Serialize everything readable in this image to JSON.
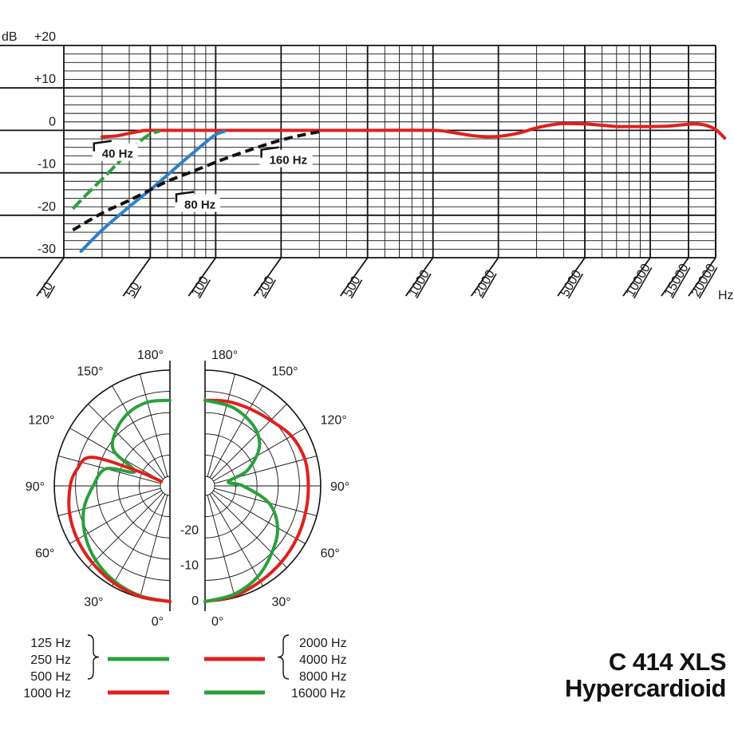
{
  "model": "C 414 XLS",
  "pattern": "Hypercardioid",
  "colors": {
    "red": "#e0201c",
    "green": "#29a03c",
    "blue": "#2f7fc8",
    "black": "#111111"
  },
  "chart_data": [
    {
      "type": "line",
      "x_scale": "log",
      "xlim": [
        20,
        20000
      ],
      "ylim": [
        -30,
        20
      ],
      "ylabel": "dB",
      "xlabel": "Hz",
      "grid": true,
      "y_ticks": [
        {
          "value": 20,
          "label": "+20"
        },
        {
          "value": 10,
          "label": "+10"
        },
        {
          "value": 0,
          "label": "0"
        },
        {
          "value": -10,
          "label": "-10"
        },
        {
          "value": -20,
          "label": "-20"
        },
        {
          "value": -30,
          "label": "-30"
        }
      ],
      "x_ticks": [
        {
          "value": 20,
          "label": "20"
        },
        {
          "value": 50,
          "label": "50"
        },
        {
          "value": 100,
          "label": "100"
        },
        {
          "value": 200,
          "label": "200"
        },
        {
          "value": 500,
          "label": "500"
        },
        {
          "value": 1000,
          "label": "1000"
        },
        {
          "value": 2000,
          "label": "2000"
        },
        {
          "value": 5000,
          "label": "5000"
        },
        {
          "value": 10000,
          "label": "10000"
        },
        {
          "value": 15000,
          "label": "15000"
        },
        {
          "value": 20000,
          "label": "20000"
        }
      ],
      "series": [
        {
          "color": "#e0201c",
          "style": "solid",
          "points": [
            [
              30,
              -1.5
            ],
            [
              35,
              -1.3
            ],
            [
              40,
              -0.7
            ],
            [
              45,
              -0.2
            ],
            [
              50,
              0
            ],
            [
              100,
              0
            ],
            [
              200,
              0
            ],
            [
              500,
              0
            ],
            [
              1000,
              0
            ],
            [
              1200,
              -0.4
            ],
            [
              1500,
              -1.2
            ],
            [
              1800,
              -1.5
            ],
            [
              2100,
              -1.3
            ],
            [
              2500,
              -0.6
            ],
            [
              3000,
              0.6
            ],
            [
              3500,
              1.3
            ],
            [
              4000,
              1.6
            ],
            [
              5000,
              1.5
            ],
            [
              6000,
              1.2
            ],
            [
              7000,
              0.9
            ],
            [
              8000,
              0.9
            ],
            [
              9000,
              0.9
            ],
            [
              10000,
              0.9
            ],
            [
              12000,
              1.0
            ],
            [
              14000,
              1.3
            ],
            [
              16000,
              1.5
            ],
            [
              18000,
              1.2
            ],
            [
              20000,
              0.2
            ],
            [
              22000,
              -1.8
            ]
          ]
        },
        {
          "color": "#29a03c",
          "style": "dashed",
          "points": [
            [
              22,
              -18.5
            ],
            [
              25,
              -15.5
            ],
            [
              30,
              -11.5
            ],
            [
              35,
              -8
            ],
            [
              40,
              -5
            ],
            [
              45,
              -2.5
            ],
            [
              50,
              -0.9
            ],
            [
              55,
              -0.2
            ]
          ]
        },
        {
          "color": "#2f7fc8",
          "style": "solid",
          "points": [
            [
              24,
              -28.5
            ],
            [
              30,
              -23.5
            ],
            [
              40,
              -18
            ],
            [
              50,
              -14
            ],
            [
              60,
              -10.5
            ],
            [
              70,
              -7.5
            ],
            [
              80,
              -5
            ],
            [
              90,
              -2.8
            ],
            [
              100,
              -1
            ],
            [
              110,
              -0.2
            ]
          ]
        },
        {
          "color": "#111111",
          "style": "dashed",
          "points": [
            [
              22,
              -23.5
            ],
            [
              30,
              -19.5
            ],
            [
              40,
              -16.5
            ],
            [
              50,
              -14
            ],
            [
              60,
              -12
            ],
            [
              80,
              -9.5
            ],
            [
              100,
              -7.5
            ],
            [
              120,
              -6
            ],
            [
              160,
              -3.8
            ],
            [
              200,
              -2.3
            ],
            [
              250,
              -1.1
            ],
            [
              300,
              -0.3
            ]
          ]
        }
      ],
      "annotations": [
        {
          "text": "40 Hz",
          "x": 28,
          "y": -5.5
        },
        {
          "text": "80 Hz",
          "x": 67,
          "y": -17.5
        },
        {
          "text": "160 Hz",
          "x": 165,
          "y": -7
        }
      ]
    },
    {
      "type": "polar",
      "rlim": [
        -30,
        0
      ],
      "r_ticks": [
        {
          "value": -20,
          "label": "-20"
        },
        {
          "value": -10,
          "label": "-10"
        },
        {
          "value": 0,
          "label": "0"
        }
      ],
      "angle_ticks_left": [
        {
          "value": 180,
          "label": "180°"
        },
        {
          "value": 150,
          "label": "150°"
        },
        {
          "value": 120,
          "label": "120°"
        },
        {
          "value": 90,
          "label": "90°"
        },
        {
          "value": 60,
          "label": "60°"
        },
        {
          "value": 30,
          "label": "30°"
        },
        {
          "value": 0,
          "label": "0°"
        }
      ],
      "angle_ticks_right": [
        {
          "value": 180,
          "label": "180°"
        },
        {
          "value": 150,
          "label": "150°"
        },
        {
          "value": 120,
          "label": "120°"
        },
        {
          "value": 90,
          "label": "90°"
        },
        {
          "value": 60,
          "label": "60°"
        },
        {
          "value": 30,
          "label": "30°"
        },
        {
          "value": 0,
          "label": "0°"
        }
      ],
      "series": [
        {
          "side": "left",
          "group": "125 Hz 250 Hz 500 Hz",
          "color": "#29a03c",
          "points": [
            [
              0,
              0
            ],
            [
              15,
              -0.5
            ],
            [
              30,
              -1.5
            ],
            [
              45,
              -3
            ],
            [
              60,
              -5
            ],
            [
              75,
              -7.5
            ],
            [
              90,
              -11
            ],
            [
              105,
              -14
            ],
            [
              112,
              -22
            ],
            [
              122,
              -14
            ],
            [
              135,
              -11
            ],
            [
              150,
              -9
            ],
            [
              165,
              -8.2
            ],
            [
              180,
              -8.5
            ]
          ]
        },
        {
          "side": "left",
          "group": "1000 Hz",
          "color": "#e0201c",
          "points": [
            [
              0,
              0
            ],
            [
              15,
              -0.3
            ],
            [
              30,
              -1
            ],
            [
              45,
              -1.8
            ],
            [
              60,
              -2.5
            ],
            [
              75,
              -3.3
            ],
            [
              90,
              -4.5
            ],
            [
              100,
              -6
            ],
            [
              110,
              -9
            ],
            [
              114,
              -21
            ],
            [
              118,
              -30
            ]
          ]
        },
        {
          "side": "right",
          "group": "2000 Hz 4000 Hz 8000 Hz",
          "color": "#e0201c",
          "points": [
            [
              0,
              0
            ],
            [
              15,
              -0.5
            ],
            [
              30,
              -1.5
            ],
            [
              45,
              -2.2
            ],
            [
              60,
              -2.8
            ],
            [
              75,
              -3.3
            ],
            [
              90,
              -3.5
            ],
            [
              105,
              -3.5
            ],
            [
              120,
              -4.5
            ],
            [
              135,
              -6.5
            ],
            [
              150,
              -7.5
            ],
            [
              165,
              -8
            ],
            [
              180,
              -8.5
            ]
          ]
        },
        {
          "side": "right",
          "group": "16000 Hz",
          "color": "#29a03c",
          "points": [
            [
              0,
              0
            ],
            [
              15,
              -1
            ],
            [
              30,
              -3
            ],
            [
              45,
              -6
            ],
            [
              60,
              -9
            ],
            [
              75,
              -14
            ],
            [
              90,
              -22
            ],
            [
              100,
              -26
            ],
            [
              110,
              -20
            ],
            [
              125,
              -14
            ],
            [
              140,
              -11
            ],
            [
              160,
              -9.2
            ],
            [
              180,
              -8.5
            ]
          ]
        }
      ]
    }
  ],
  "legend": {
    "left": {
      "group_labels": [
        "125 Hz",
        "250 Hz",
        "500 Hz"
      ],
      "group_color": "#29a03c",
      "single_label": "1000 Hz",
      "single_color": "#e0201c"
    },
    "right": {
      "group_labels": [
        "2000 Hz",
        "4000 Hz",
        "8000 Hz"
      ],
      "group_color": "#e0201c",
      "single_label": "16000 Hz",
      "single_color": "#29a03c"
    }
  }
}
